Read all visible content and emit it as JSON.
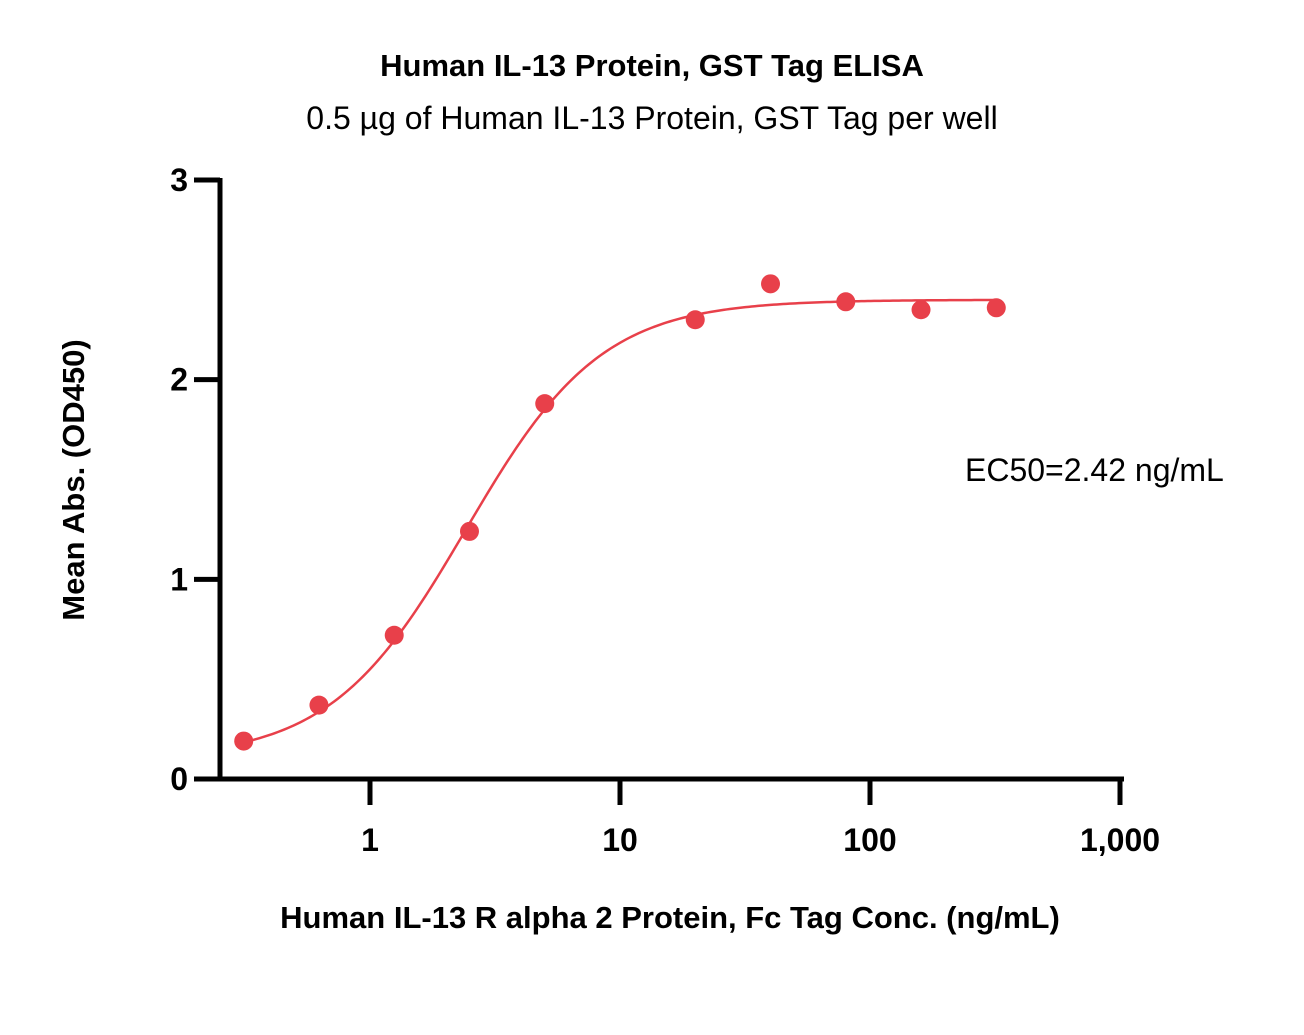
{
  "chart_data": {
    "type": "scatter",
    "title": "Human IL-13 Protein, GST Tag ELISA",
    "subtitle": "0.5 µg of Human IL-13 Protein, GST Tag per well",
    "xlabel": "Human IL-13 R alpha 2 Protein, Fc Tag Conc. (ng/mL)",
    "ylabel": "Mean Abs. (OD450)",
    "x_scale": "log",
    "xlim": [
      0.2,
      1000
    ],
    "ylim": [
      0,
      3
    ],
    "x_ticks": [
      {
        "value": 1,
        "label": "1"
      },
      {
        "value": 10,
        "label": "10"
      },
      {
        "value": 100,
        "label": "100"
      },
      {
        "value": 1000,
        "label": "1,000"
      }
    ],
    "y_ticks": [
      {
        "value": 0,
        "label": "0"
      },
      {
        "value": 1,
        "label": "1"
      },
      {
        "value": 2,
        "label": "2"
      },
      {
        "value": 3,
        "label": "3"
      }
    ],
    "grid": false,
    "series": [
      {
        "color": "#e8404a",
        "x": [
          0.3125,
          0.625,
          1.25,
          2.5,
          5,
          20,
          40,
          80,
          160,
          320
        ],
        "y": [
          0.19,
          0.37,
          0.72,
          1.24,
          1.88,
          2.3,
          2.48,
          2.39,
          2.35,
          2.36
        ]
      }
    ],
    "fit": {
      "type": "4PL",
      "color": "#e8404a",
      "bottom": 0.1,
      "top": 2.4,
      "ec50": 2.42,
      "hill": 1.6,
      "x_range": [
        0.3125,
        320
      ]
    },
    "annotation": "EC50=2.42 ng/mL"
  }
}
